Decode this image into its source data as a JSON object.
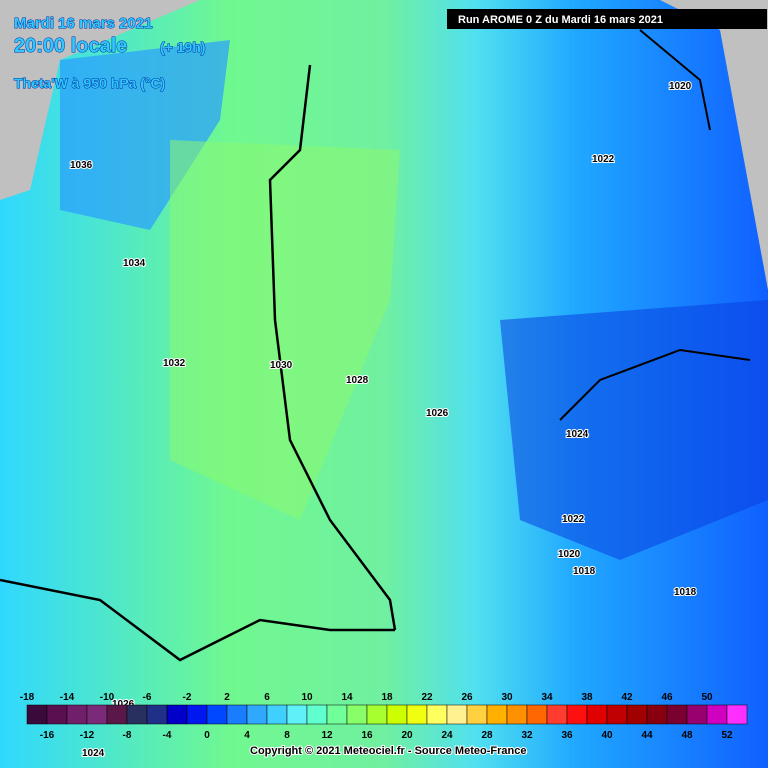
{
  "header": {
    "date": "Mardi 16 mars 2021",
    "time": "20:00 locale",
    "lead": "(+ 19h)",
    "field": "Theta'W à 950 hPa (°C)",
    "run": "Run AROME 0 Z du Mardi 16 mars 2021"
  },
  "isobars": [
    "1036",
    "1034",
    "1032",
    "1030",
    "1028",
    "1026",
    "1024",
    "1022",
    "1020",
    "1022",
    "1020",
    "1018",
    "1018",
    "1024",
    "1026"
  ],
  "scale": {
    "top": [
      "-18",
      "-14",
      "-10",
      "-6",
      "-2",
      "2",
      "6",
      "10",
      "14",
      "18",
      "22",
      "26",
      "30",
      "34",
      "38",
      "42",
      "46",
      "50"
    ],
    "bottom": [
      "-16",
      "-12",
      "-8",
      "-4",
      "0",
      "4",
      "8",
      "12",
      "16",
      "20",
      "24",
      "28",
      "32",
      "36",
      "40",
      "44",
      "48",
      "52"
    ],
    "colors": [
      "#3a0a3a",
      "#5a1050",
      "#70206a",
      "#7a2a78",
      "#5a1848",
      "#283060",
      "#203088",
      "#0000c8",
      "#0018f0",
      "#0048ff",
      "#1a7cff",
      "#30a8ff",
      "#40d0ff",
      "#60f0f8",
      "#60ffd0",
      "#70ff98",
      "#88ff68",
      "#a8ff30",
      "#ccff00",
      "#f0ff10",
      "#ffff60",
      "#fff090",
      "#ffd040",
      "#ffb000",
      "#ff9000",
      "#ff6800",
      "#ff3c30",
      "#ff1010",
      "#e00000",
      "#c00000",
      "#a00000",
      "#880010",
      "#7a0030",
      "#980070",
      "#d000c0",
      "#ff30ff"
    ]
  },
  "footer": {
    "copyright": "Copyright © 2021 Meteociel.fr - Source Meteo-France"
  }
}
